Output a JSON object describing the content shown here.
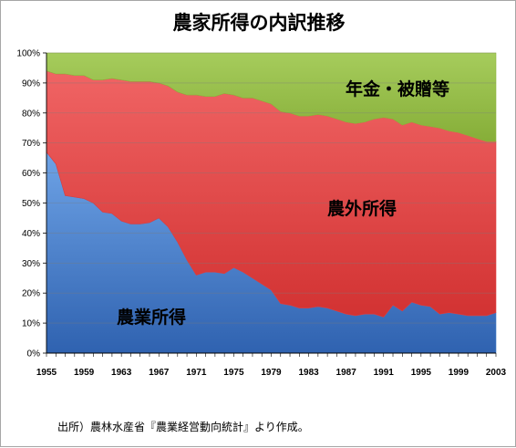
{
  "chart_data": {
    "type": "area",
    "stacked": true,
    "title": "農家所得の内訳推移",
    "ylim": [
      0,
      100
    ],
    "y_ticks": [
      "0%",
      "10%",
      "20%",
      "30%",
      "40%",
      "50%",
      "60%",
      "70%",
      "80%",
      "90%",
      "100%"
    ],
    "x_tick_labels": [
      "1955",
      "1959",
      "1963",
      "1967",
      "1971",
      "1975",
      "1979",
      "1983",
      "1987",
      "1991",
      "1995",
      "1999",
      "2003"
    ],
    "x": [
      1955,
      1956,
      1957,
      1958,
      1959,
      1960,
      1961,
      1962,
      1963,
      1964,
      1965,
      1966,
      1967,
      1968,
      1969,
      1970,
      1971,
      1972,
      1973,
      1974,
      1975,
      1976,
      1977,
      1978,
      1979,
      1980,
      1981,
      1982,
      1983,
      1984,
      1985,
      1986,
      1987,
      1988,
      1989,
      1990,
      1991,
      1992,
      1993,
      1994,
      1995,
      1996,
      1997,
      1998,
      1999,
      2000,
      2001,
      2002,
      2003
    ],
    "series": [
      {
        "name": "農業所得",
        "color": "#3c78c8",
        "values": [
          67,
          63,
          52.5,
          52,
          51.5,
          50,
          47,
          46.5,
          44,
          43,
          43,
          43.5,
          45,
          42,
          37,
          31,
          26,
          27,
          27,
          26.5,
          28.5,
          27,
          25,
          23,
          21,
          16.5,
          16,
          15,
          15,
          15.5,
          15,
          14,
          13,
          12.5,
          13,
          13,
          12,
          16,
          14,
          17,
          16,
          15.5,
          13,
          13.5,
          13,
          12.5,
          12.5,
          12.5,
          13.5
        ]
      },
      {
        "name": "農外所得",
        "color": "#e03c3c",
        "values": [
          27,
          30,
          40.5,
          40.5,
          41,
          41,
          44,
          45,
          47,
          47.5,
          47.5,
          47,
          45,
          47,
          50,
          55,
          60,
          58.5,
          58.5,
          60,
          57.5,
          58,
          60,
          61,
          62,
          64,
          64,
          64,
          64,
          64,
          64,
          64,
          64,
          64,
          64,
          65,
          66.5,
          62,
          62,
          60,
          60,
          60,
          62,
          60.5,
          60.5,
          60,
          59,
          58,
          57
        ]
      },
      {
        "name": "年金・被贈等",
        "color": "#8cb43c",
        "values": [
          6,
          7,
          7,
          7.5,
          7.5,
          9,
          9,
          8.5,
          9,
          9.5,
          9.5,
          9.5,
          10,
          11,
          13,
          14,
          14,
          14.5,
          14.5,
          13.5,
          14,
          15,
          15,
          16,
          17,
          19.5,
          20,
          21,
          21,
          20.5,
          21,
          22,
          23,
          23.5,
          23,
          22,
          21.5,
          22,
          24,
          23,
          24,
          24.5,
          25,
          26,
          26.5,
          27.5,
          28.5,
          29.5,
          29.5
        ]
      }
    ],
    "annotations": [
      "年金・被贈等",
      "農外所得",
      "農業所得"
    ]
  },
  "source_note": "出所）農林水産省『農業経営動向統計』より作成。"
}
